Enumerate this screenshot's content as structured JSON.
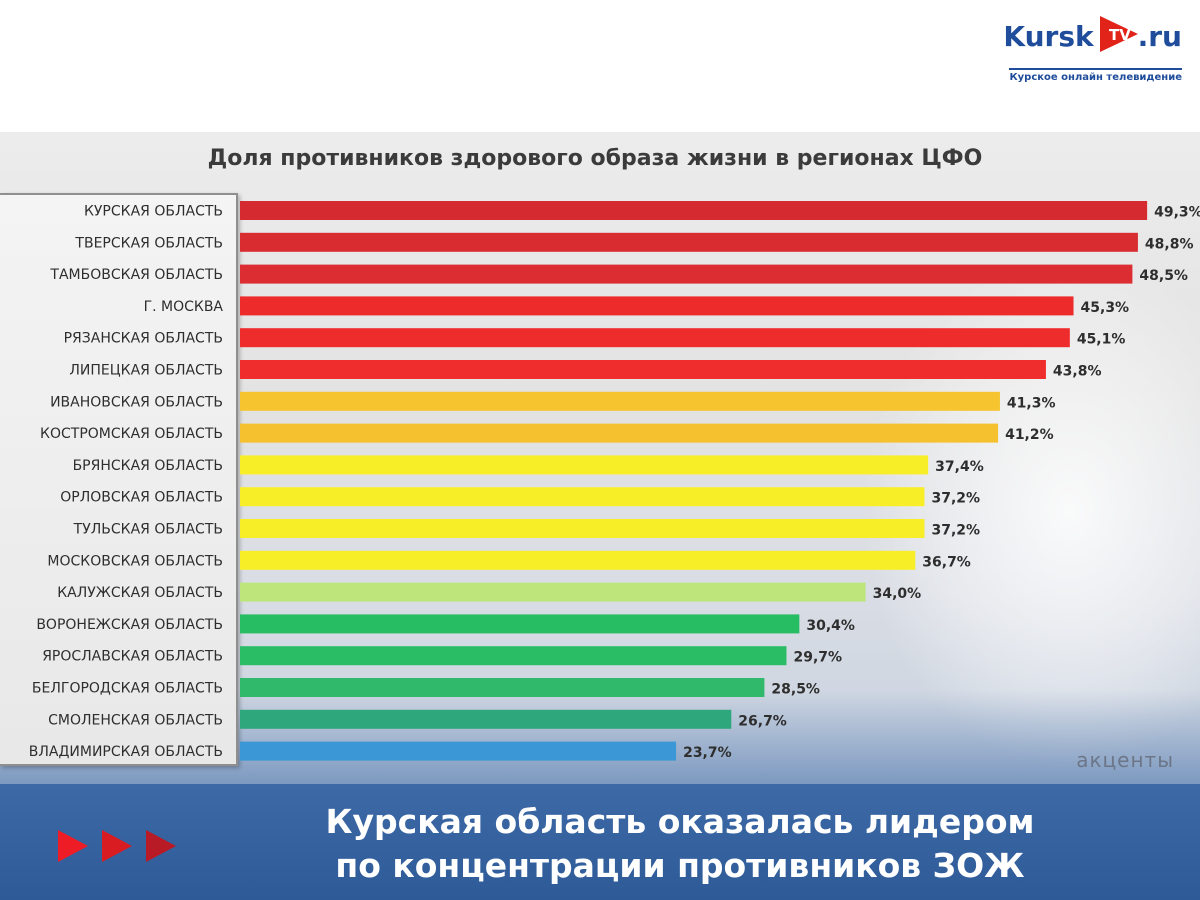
{
  "logo": {
    "brand_left": "Kursk",
    "brand_badge": "TV",
    "brand_right": ".ru",
    "tagline": "Курское онлайн телевидение"
  },
  "watermark": "акценты",
  "headline": {
    "line1": "Курская область оказалась лидером",
    "line2": "по концентрации противников ЗОЖ"
  },
  "colors": {
    "red": "#d9262c",
    "orange": "#f2b52a",
    "yellow": "#f5ec23",
    "light_green": "#b8e47a",
    "green": "#2db86a",
    "teal": "#2ea879",
    "blue": "#3b95d3",
    "banner": "#2e5b98"
  },
  "chart_data": {
    "type": "bar",
    "orientation": "horizontal",
    "title": "Доля противников здорового образа жизни в регионах ЦФО",
    "categories": [
      "КУРСКАЯ ОБЛАСТЬ",
      "ТВЕРСКАЯ ОБЛАСТЬ",
      "ТАМБОВСКАЯ ОБЛАСТЬ",
      "Г. МОСКВА",
      "РЯЗАНСКАЯ ОБЛАСТЬ",
      "ЛИПЕЦКАЯ ОБЛАСТЬ",
      "ИВАНОВСКАЯ ОБЛАСТЬ",
      "КОСТРОМСКАЯ ОБЛАСТЬ",
      "БРЯНСКАЯ ОБЛАСТЬ",
      "ОРЛОВСКАЯ ОБЛАСТЬ",
      "ТУЛЬСКАЯ ОБЛАСТЬ",
      "МОСКОВСКАЯ ОБЛАСТЬ",
      "КАЛУЖСКАЯ ОБЛАСТЬ",
      "ВОРОНЕЖСКАЯ ОБЛАСТЬ",
      "ЯРОСЛАВСКАЯ ОБЛАСТЬ",
      "БЕЛГОРОДСКАЯ ОБЛАСТЬ",
      "СМОЛЕНСКАЯ ОБЛАСТЬ",
      "ВЛАДИМИРСКАЯ ОБЛАСТЬ"
    ],
    "values": [
      49.3,
      48.8,
      48.5,
      45.3,
      45.1,
      43.8,
      41.3,
      41.2,
      37.4,
      37.2,
      37.2,
      36.7,
      34.0,
      30.4,
      29.7,
      28.5,
      26.7,
      23.7
    ],
    "value_labels": [
      "49,3%",
      "48,8%",
      "48,5%",
      "45,3%",
      "45,1%",
      "43,8%",
      "41,3%",
      "41,2%",
      "37,4%",
      "37,2%",
      "37,2%",
      "36,7%",
      "34,0%",
      "30,4%",
      "29,7%",
      "28,5%",
      "26,7%",
      "23,7%"
    ],
    "bar_colors": [
      "#d42a30",
      "#d92c31",
      "#dc2d32",
      "#ee2b2b",
      "#ef2c2c",
      "#f02d2d",
      "#f5c42e",
      "#f5c12f",
      "#f8ee27",
      "#f8ee27",
      "#f8ee27",
      "#f8ee27",
      "#bde57c",
      "#27bd62",
      "#2bbc66",
      "#30b86b",
      "#2ea77d",
      "#3b97d6"
    ],
    "xlim": [
      0,
      50
    ],
    "grid": false,
    "legend": "none"
  }
}
